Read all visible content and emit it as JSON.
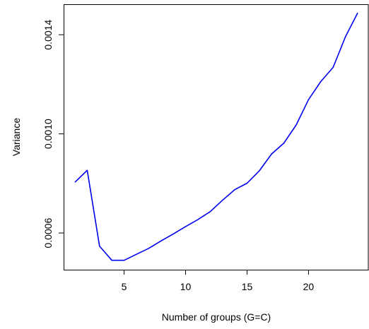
{
  "chart_data": {
    "type": "line",
    "title": "",
    "xlabel": "Number of groups (G=C)",
    "ylabel": "Variance",
    "xlim": [
      0.08,
      24.92
    ],
    "ylim": [
      0.000452,
      0.001523
    ],
    "xticks": [
      5,
      10,
      15,
      20
    ],
    "xtick_labels": [
      "5",
      "10",
      "15",
      "20"
    ],
    "yticks": [
      0.0006,
      0.001,
      0.0014
    ],
    "ytick_labels": [
      "0.0006",
      "0.0010",
      "0.0014"
    ],
    "grid": false,
    "legend": "none",
    "series": [
      {
        "color": "#0000ee",
        "x": [
          1,
          2,
          3,
          4,
          5,
          6,
          7,
          8,
          9,
          10,
          11,
          12,
          13,
          14,
          15,
          16,
          17,
          18,
          19,
          20,
          21,
          22,
          23,
          24
        ],
        "y": [
          0.000805,
          0.000853,
          0.000547,
          0.00049,
          0.00049,
          0.000514,
          0.000538,
          0.000568,
          0.000596,
          0.000626,
          0.000654,
          0.000686,
          0.000732,
          0.000775,
          0.000801,
          0.000851,
          0.000919,
          0.000963,
          0.001036,
          0.001138,
          0.001211,
          0.001268,
          0.001391,
          0.001488
        ]
      }
    ]
  }
}
